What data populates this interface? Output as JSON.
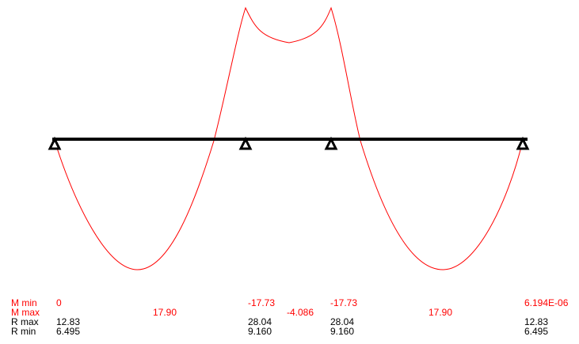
{
  "colors": {
    "moment_curve": "#ff0000",
    "beam": "#000000",
    "support": "#000000",
    "moment_labels": "#ff0000",
    "reaction_labels": "#000000"
  },
  "beam": {
    "support_type": "pin",
    "support_count": 4,
    "span_count": 3
  },
  "results_table": {
    "m_min_label": "M min",
    "m_max_label": "M max",
    "r_max_label": "R max",
    "r_min_label": "R min",
    "m_min": {
      "support_1": "0",
      "support_2": "-17.73",
      "support_3": "-17.73",
      "support_4": "6.194E-06"
    },
    "m_max": {
      "span_1": "17.90",
      "span_2": "-4.086",
      "span_3": "17.90"
    },
    "r_max": {
      "support_1": "12.83",
      "support_2": "28.04",
      "support_3": "28.04",
      "support_4": "12.83"
    },
    "r_min": {
      "support_1": "6.495",
      "support_2": "9.160",
      "support_3": "9.160",
      "support_4": "6.495"
    }
  }
}
